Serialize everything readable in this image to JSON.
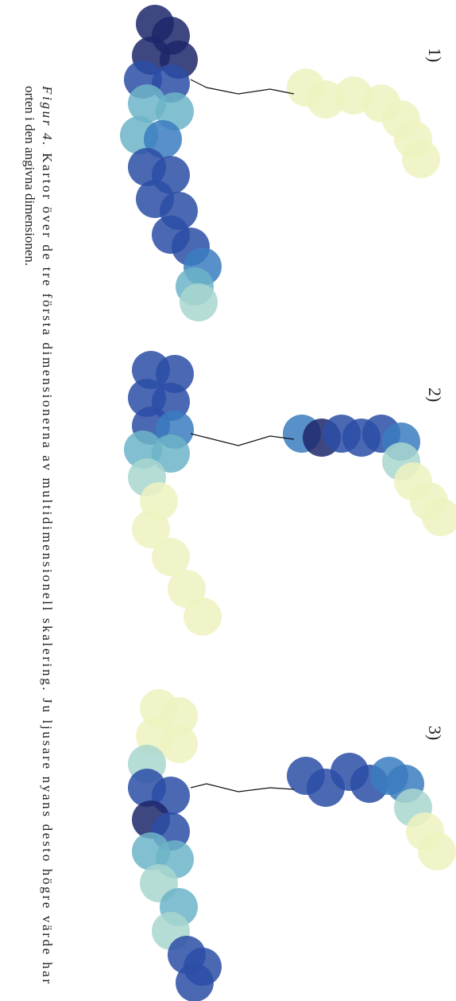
{
  "figure": {
    "panels": [
      "1)",
      "2)",
      "3)"
    ]
  },
  "caption": {
    "label": "Figur 4.",
    "line1": " Kartor över de tre första dimensionerna av multidimensionell skalering. Ju ljusare nyans desto högre värde har",
    "line2": "orten i den angivna dimensionen."
  }
}
